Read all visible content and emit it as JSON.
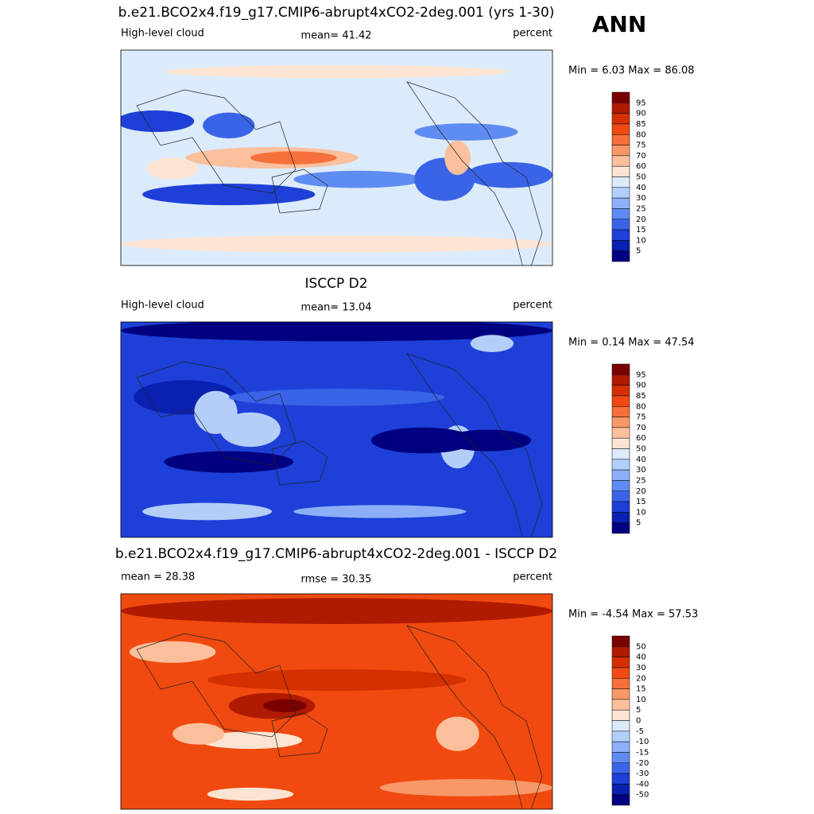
{
  "header": {
    "season": "ANN"
  },
  "palette": [
    "#7a0000",
    "#b01a00",
    "#d43000",
    "#f04a10",
    "#f5703a",
    "#f89868",
    "#fbbf9c",
    "#fde4d2",
    "#dcebfb",
    "#b4cefa",
    "#8cb0f8",
    "#5f8cf2",
    "#3a64e8",
    "#1e40d8",
    "#0a20b0",
    "#000080"
  ],
  "panels": [
    {
      "title": "b.e21.BCO2x4.f19_g17.CMIP6-abrupt4xCO2-2deg.001 (yrs 1-30)",
      "left": "High-level cloud",
      "center": "mean=  41.42",
      "right": "percent",
      "range": "Min =   6.03 Max =  86.08",
      "colorbar": [
        "95",
        "90",
        "85",
        "80",
        "75",
        "70",
        "60",
        "50",
        "40",
        "30",
        "25",
        "20",
        "15",
        "10",
        "5"
      ]
    },
    {
      "title": "ISCCP D2",
      "left": "High-level cloud",
      "center": "mean=  13.04",
      "right": "percent",
      "range": "Min =   0.14 Max =  47.54",
      "colorbar": [
        "95",
        "90",
        "85",
        "80",
        "75",
        "70",
        "60",
        "50",
        "40",
        "30",
        "25",
        "20",
        "15",
        "10",
        "5"
      ]
    },
    {
      "title": "b.e21.BCO2x4.f19_g17.CMIP6-abrupt4xCO2-2deg.001 - ISCCP D2",
      "left": "mean =  28.38",
      "center": "rmse =  30.35",
      "right": "percent",
      "range": "Min =  -4.54 Max =  57.53",
      "colorbar": [
        "50",
        "40",
        "30",
        "20",
        "15",
        "10",
        "5",
        "0",
        "-5",
        "-10",
        "-15",
        "-20",
        "-30",
        "-40",
        "-50"
      ]
    }
  ]
}
